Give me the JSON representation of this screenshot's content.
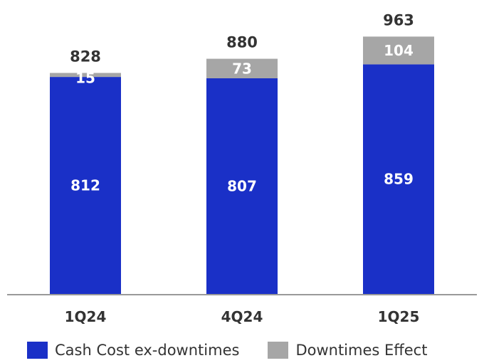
{
  "chart_data": {
    "type": "bar",
    "stacked": true,
    "categories": [
      "1Q24",
      "4Q24",
      "1Q25"
    ],
    "series": [
      {
        "name": "Cash Cost ex-downtimes",
        "color": "#1a30c7",
        "values": [
          812,
          807,
          859
        ]
      },
      {
        "name": "Downtimes Effect",
        "color": "#a6a6a6",
        "values": [
          15,
          73,
          104
        ]
      }
    ],
    "totals": [
      828,
      880,
      963
    ],
    "title": "",
    "xlabel": "",
    "ylabel": "",
    "grid": false,
    "legend": "bottom-left"
  }
}
